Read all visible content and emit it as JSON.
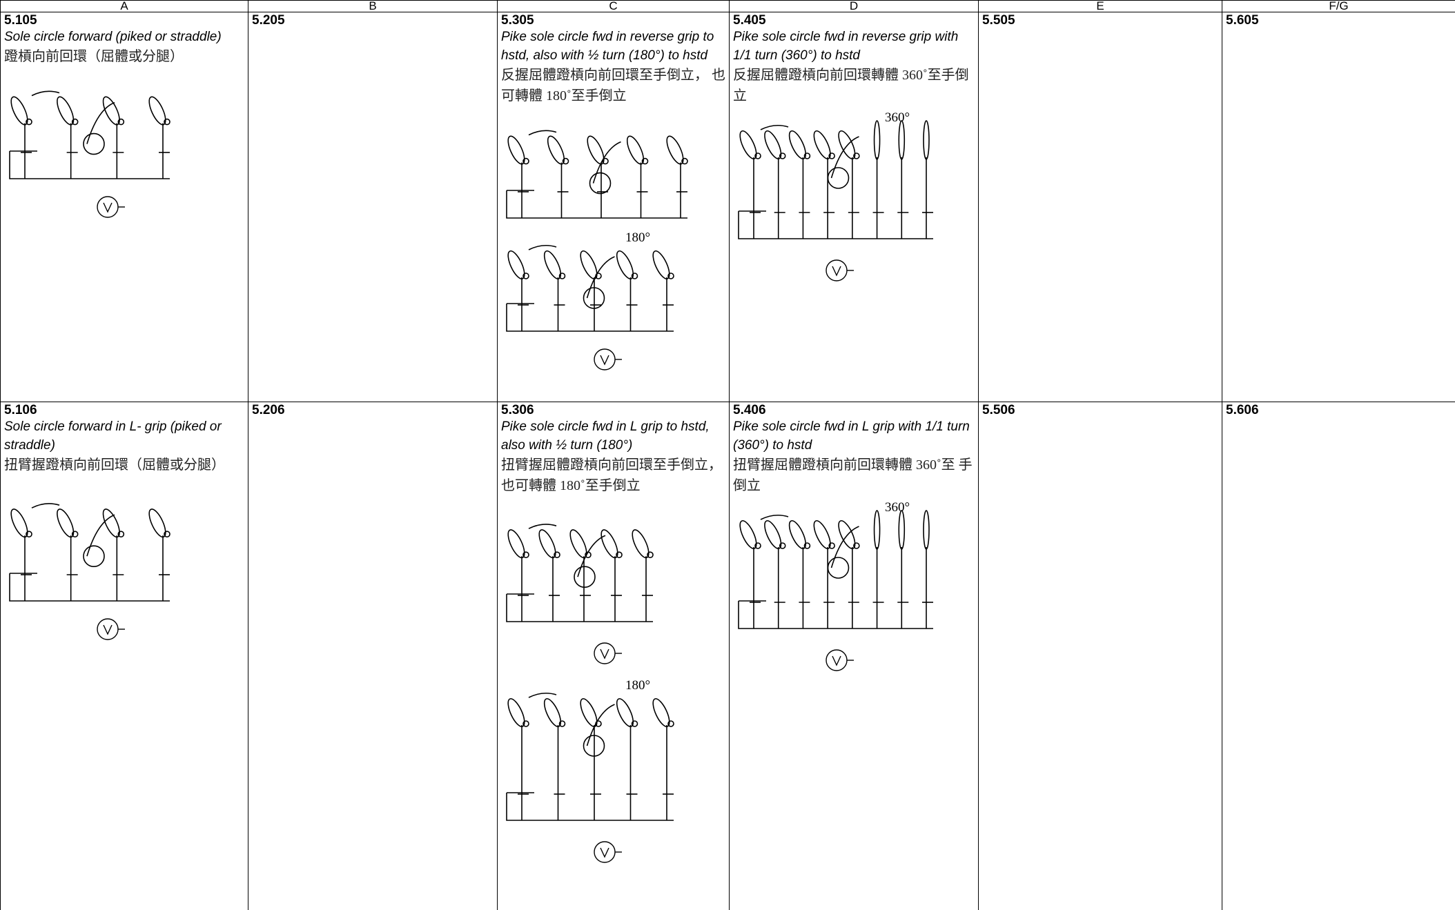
{
  "header": {
    "columns": [
      "A",
      "B",
      "C",
      "D",
      "E",
      "F/G"
    ]
  },
  "table": {
    "rows": [
      [
        {
          "code": "5.105",
          "english": "Sole circle forward (piked or straddle)",
          "chinese": "蹬槓向前回環（屈體或分腿）"
        },
        {
          "code": "5.205"
        },
        {
          "code": "5.305",
          "english": "Pike sole circle fwd in reverse grip to hstd, also with ½ turn (180°) to hstd",
          "chinese": "反握屈體蹬槓向前回環至手倒立， 也可轉體 180˚至手倒立",
          "figure_labels": [
            "180°"
          ]
        },
        {
          "code": "5.405",
          "english": "Pike sole circle fwd in reverse grip with 1/1 turn (360°) to hstd",
          "chinese": "反握屈體蹬槓向前回環轉體 360˚至手倒立",
          "figure_labels": [
            "360°"
          ]
        },
        {
          "code": "5.505"
        },
        {
          "code": "5.605"
        }
      ],
      [
        {
          "code": "5.106",
          "english": "Sole circle forward in L- grip (piked or straddle)",
          "chinese": "扭臂握蹬槓向前回環（屈體或分腿）"
        },
        {
          "code": "5.206"
        },
        {
          "code": "5.306",
          "english": "Pike sole circle fwd in L grip to hstd, also with ½ turn (180°)",
          "chinese": "扭臂握屈體蹬槓向前回環至手倒立，也可轉體 180˚至手倒立",
          "figure_labels": [
            "180°"
          ]
        },
        {
          "code": "5.406",
          "english": "Pike sole circle fwd in L grip with 1/1 turn (360°) to hstd",
          "chinese": "扭臂握屈體蹬槓向前回環轉體 360˚至 手倒立",
          "figure_labels": [
            "360°"
          ]
        },
        {
          "code": "5.506"
        },
        {
          "code": "5.606"
        }
      ]
    ]
  }
}
